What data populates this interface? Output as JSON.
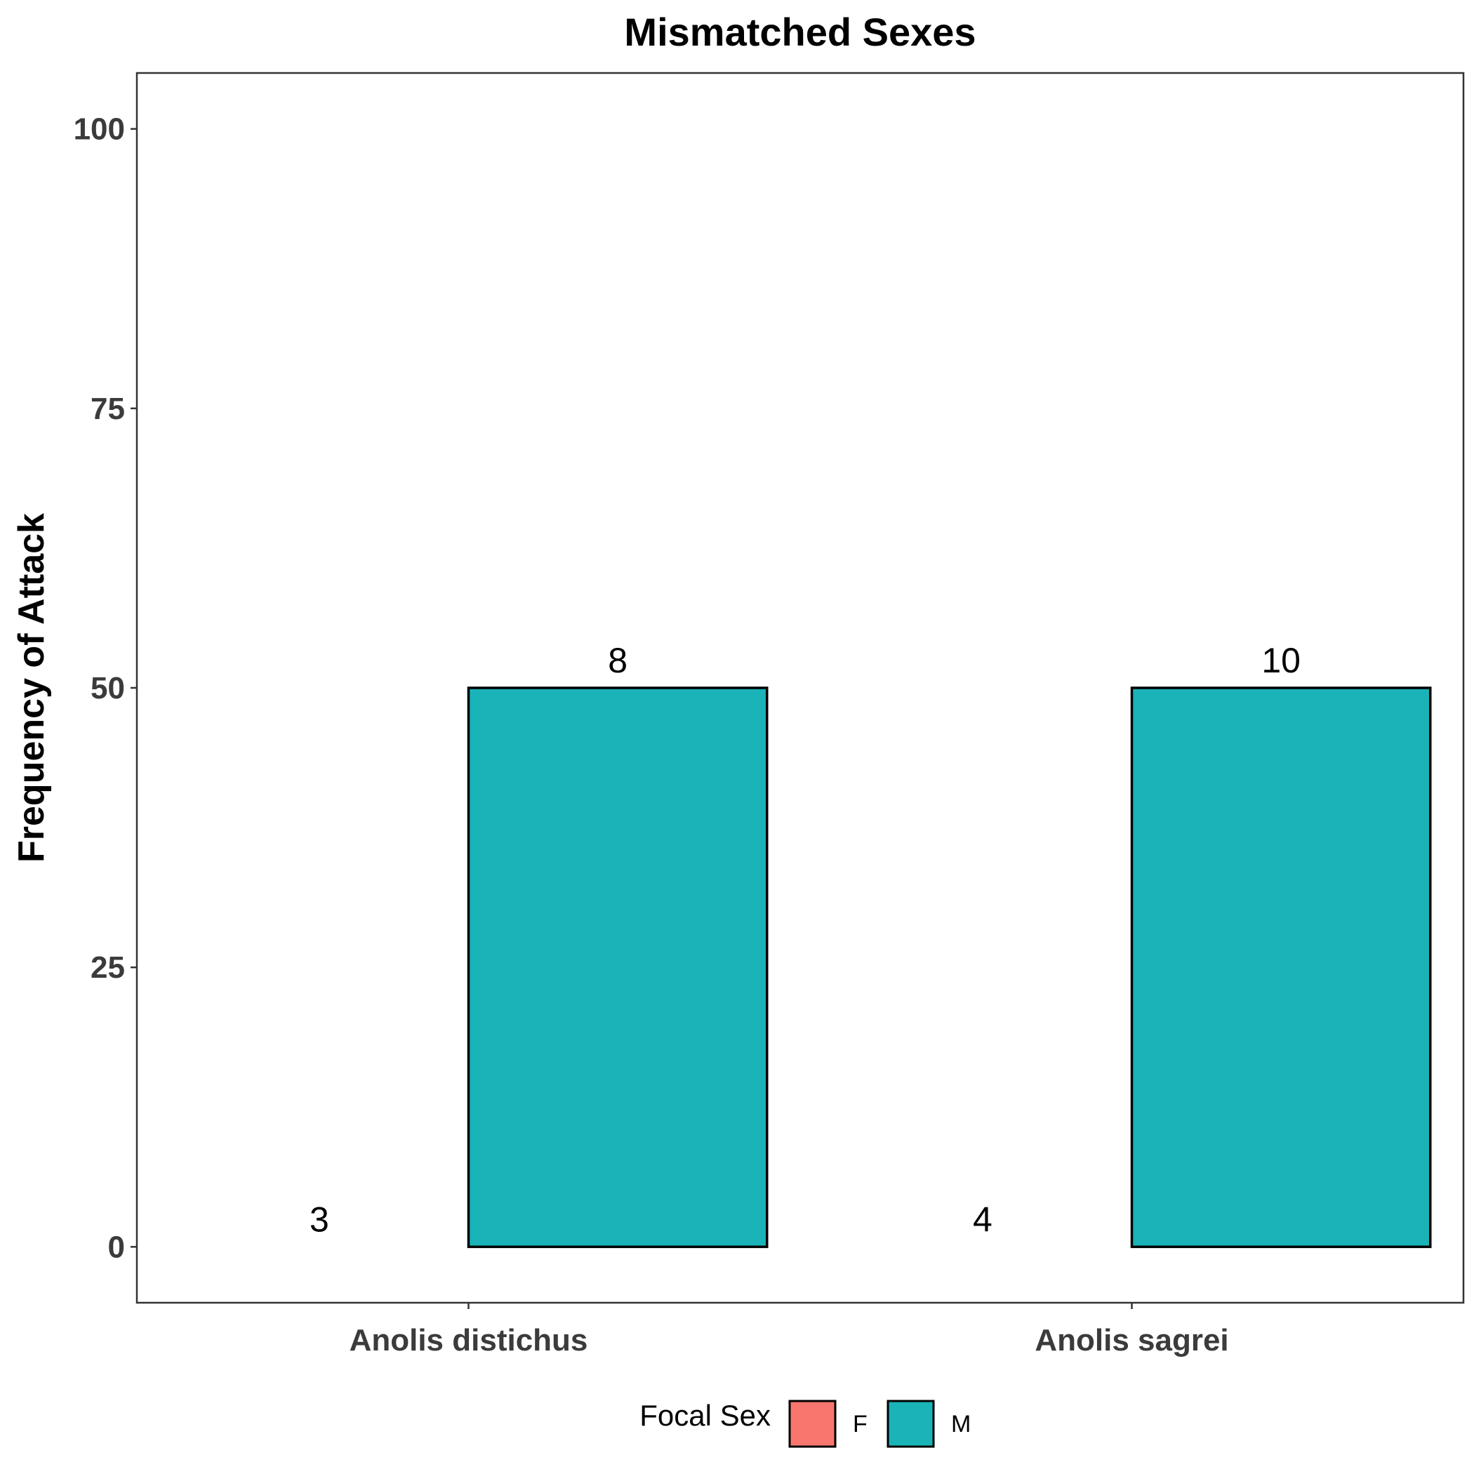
{
  "chart_data": {
    "type": "bar",
    "title": "Mismatched Sexes",
    "xlabel": "",
    "ylabel": "Frequency of Attack",
    "ylim": [
      -5,
      105
    ],
    "yticks": [
      0,
      25,
      50,
      75,
      100
    ],
    "grid": false,
    "categories": [
      "Anolis distichus",
      "Anolis sagrei"
    ],
    "series": [
      {
        "name": "F",
        "color": "#F8766D",
        "values": [
          0,
          0
        ],
        "labels": [
          "3",
          "4"
        ]
      },
      {
        "name": "M",
        "color": "#19B3B8",
        "values": [
          50,
          50
        ],
        "labels": [
          "8",
          "10"
        ]
      }
    ],
    "legend": {
      "title": "Focal Sex",
      "position": "bottom"
    }
  }
}
